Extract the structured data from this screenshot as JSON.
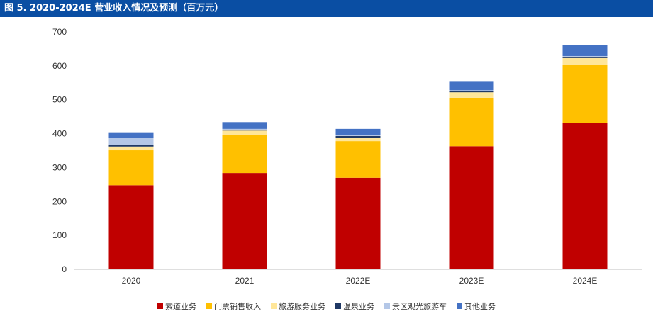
{
  "title": "图 5. 2020-2024E 营业收入情况及预测（百万元）",
  "chart_data": {
    "type": "bar",
    "stacked": true,
    "title": "图 5. 2020-2024E 营业收入情况及预测（百万元）",
    "xlabel": "",
    "ylabel": "",
    "ylim": [
      0,
      700
    ],
    "yticks": [
      0,
      100,
      200,
      300,
      400,
      500,
      600,
      700
    ],
    "grid": false,
    "legend_position": "bottom",
    "categories": [
      "2020",
      "2021",
      "2022E",
      "2023E",
      "2024E"
    ],
    "series": [
      {
        "name": "索道业务",
        "color": "#c00000",
        "values": [
          248,
          284,
          270,
          363,
          432
        ]
      },
      {
        "name": "门票销售收入",
        "color": "#ffc000",
        "values": [
          103,
          112,
          108,
          143,
          171
        ]
      },
      {
        "name": "旅游服务业务",
        "color": "#ffe699",
        "values": [
          11,
          13,
          10,
          16,
          20
        ]
      },
      {
        "name": "温泉业务",
        "color": "#1f3864",
        "values": [
          4,
          3,
          5,
          4,
          4
        ]
      },
      {
        "name": "景区观光旅游车",
        "color": "#b4c7e7",
        "values": [
          22,
          2,
          4,
          2,
          2
        ]
      },
      {
        "name": "其他业务",
        "color": "#4472c4",
        "values": [
          16,
          20,
          17,
          27,
          33
        ]
      }
    ]
  }
}
